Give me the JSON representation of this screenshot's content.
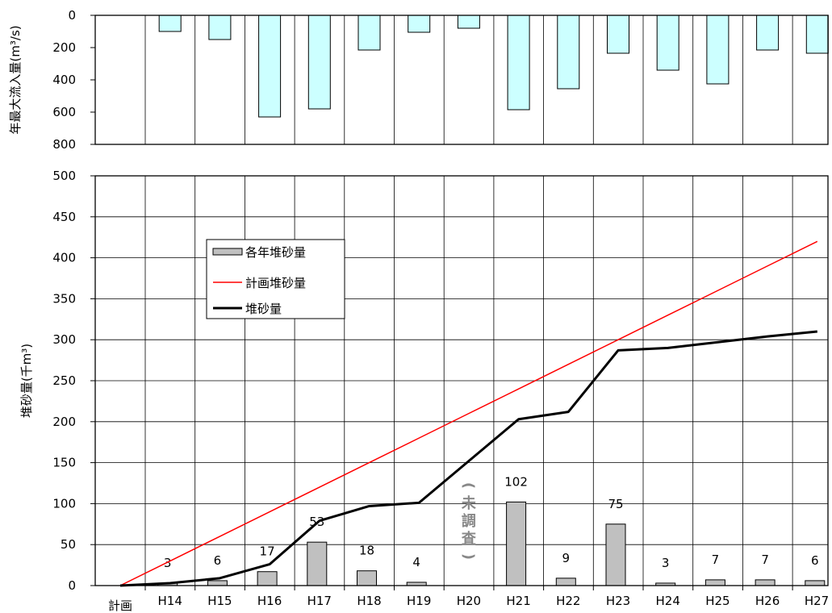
{
  "chart_data": [
    {
      "type": "bar",
      "orientation": "hanging",
      "ylabel": "年最大流入量(m³/s)",
      "ylim": [
        0,
        800
      ],
      "yticks": [
        "0",
        "200",
        "400",
        "600",
        "800"
      ],
      "categories": [
        "計画",
        "H14",
        "H15",
        "H16",
        "H17",
        "H18",
        "H19",
        "H20",
        "H21",
        "H22",
        "H23",
        "H24",
        "H25",
        "H26",
        "H27"
      ],
      "values": [
        null,
        100,
        150,
        630,
        580,
        215,
        105,
        80,
        585,
        455,
        235,
        340,
        425,
        215,
        235
      ],
      "color": "#ccffff",
      "grid": true
    },
    {
      "type": "bar+line",
      "ylabel": "堆砂量(千m³)",
      "ylim": [
        0,
        500
      ],
      "yticks": [
        "0",
        "50",
        "100",
        "150",
        "200",
        "250",
        "300",
        "350",
        "400",
        "450",
        "500"
      ],
      "categories": [
        "計画",
        "H14",
        "H15",
        "H16",
        "H17",
        "H18",
        "H19",
        "H20",
        "H21",
        "H22",
        "H23",
        "H24",
        "H25",
        "H26",
        "H27"
      ],
      "grid": true,
      "legend_position": "upper-left",
      "series": [
        {
          "name": "各年堆砂量",
          "type": "bar",
          "color": "#c0c0c0",
          "values": [
            null,
            3,
            6,
            17,
            53,
            18,
            4,
            null,
            102,
            9,
            75,
            3,
            7,
            7,
            6
          ],
          "labels": [
            "",
            "3",
            "6",
            "17",
            "53",
            "18",
            "4",
            "",
            "102",
            "9",
            "75",
            "3",
            "7",
            "7",
            "6"
          ]
        },
        {
          "name": "計画堆砂量",
          "type": "line",
          "color": "#ff0000",
          "values": [
            0,
            30,
            60,
            90,
            120,
            150,
            180,
            210,
            240,
            270,
            300,
            330,
            360,
            390,
            420
          ]
        },
        {
          "name": "堆砂量",
          "type": "line",
          "color": "#000000",
          "values": [
            0,
            3,
            9,
            26,
            79,
            97,
            101,
            null,
            203,
            212,
            287,
            290,
            297,
            304,
            310
          ]
        }
      ],
      "annotations": [
        {
          "category": "H20",
          "text": "(未調査)"
        }
      ]
    }
  ]
}
